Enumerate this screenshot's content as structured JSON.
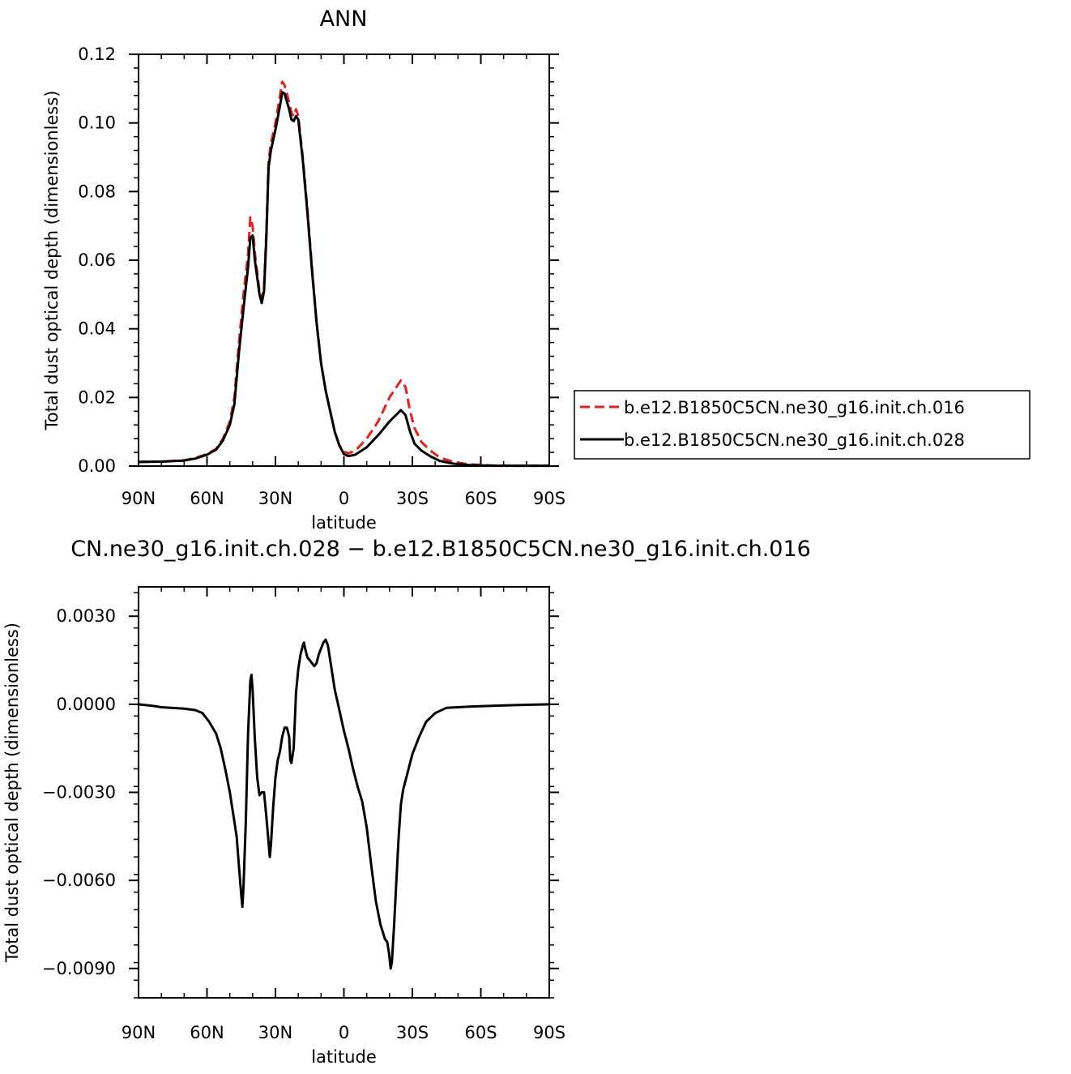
{
  "chart_data": [
    {
      "type": "line",
      "title": "ANN",
      "xlabel": "latitude",
      "ylabel": "Total dust optical depth (dimensionless)",
      "xlim": [
        90,
        -90
      ],
      "ylim": [
        0,
        0.12
      ],
      "x_ticks": [
        {
          "value": 90,
          "label": "90N"
        },
        {
          "value": 60,
          "label": "60N"
        },
        {
          "value": 30,
          "label": "30N"
        },
        {
          "value": 0,
          "label": "0"
        },
        {
          "value": -30,
          "label": "30S"
        },
        {
          "value": -60,
          "label": "60S"
        },
        {
          "value": -90,
          "label": "90S"
        }
      ],
      "y_ticks": [
        {
          "value": 0,
          "label": "0.00"
        },
        {
          "value": 0.02,
          "label": "0.02"
        },
        {
          "value": 0.04,
          "label": "0.04"
        },
        {
          "value": 0.06,
          "label": "0.06"
        },
        {
          "value": 0.08,
          "label": "0.08"
        },
        {
          "value": 0.1,
          "label": "0.10"
        },
        {
          "value": 0.12,
          "label": "0.12"
        }
      ],
      "legend_position": "right",
      "series": [
        {
          "name": "b.e12.B1850C5CN.ne30_g16.init.ch.016",
          "color": "#e8201c",
          "dash": "dashed",
          "points": [
            [
              90,
              0.0012
            ],
            [
              80,
              0.0013
            ],
            [
              70,
              0.0017
            ],
            [
              65,
              0.0024
            ],
            [
              60,
              0.0035
            ],
            [
              56,
              0.005
            ],
            [
              53,
              0.008
            ],
            [
              50,
              0.013
            ],
            [
              48,
              0.02
            ],
            [
              46,
              0.036
            ],
            [
              44,
              0.05
            ],
            [
              42,
              0.062
            ],
            [
              41,
              0.0725
            ],
            [
              40,
              0.07
            ],
            [
              39,
              0.062
            ],
            [
              37,
              0.051
            ],
            [
              36,
              0.049
            ],
            [
              35,
              0.052
            ],
            [
              34,
              0.068
            ],
            [
              33,
              0.089
            ],
            [
              32,
              0.094
            ],
            [
              30,
              0.1
            ],
            [
              28,
              0.108
            ],
            [
              27,
              0.112
            ],
            [
              26,
              0.111
            ],
            [
              24,
              0.106
            ],
            [
              23,
              0.103
            ],
            [
              22,
              0.102
            ],
            [
              21,
              0.104
            ],
            [
              20,
              0.102
            ],
            [
              18,
              0.09
            ],
            [
              16,
              0.075
            ],
            [
              14,
              0.058
            ],
            [
              12,
              0.042
            ],
            [
              10,
              0.03
            ],
            [
              8,
              0.022
            ],
            [
              6,
              0.016
            ],
            [
              4,
              0.01
            ],
            [
              2,
              0.006
            ],
            [
              0,
              0.0042
            ],
            [
              -2,
              0.0037
            ],
            [
              -5,
              0.0045
            ],
            [
              -10,
              0.008
            ],
            [
              -15,
              0.013
            ],
            [
              -20,
              0.02
            ],
            [
              -23,
              0.023
            ],
            [
              -25,
              0.025
            ],
            [
              -27,
              0.023
            ],
            [
              -29,
              0.016
            ],
            [
              -31,
              0.011
            ],
            [
              -34,
              0.007
            ],
            [
              -38,
              0.0045
            ],
            [
              -42,
              0.0025
            ],
            [
              -48,
              0.0012
            ],
            [
              -55,
              0.0005
            ],
            [
              -65,
              0.0002
            ],
            [
              -75,
              0.0001
            ],
            [
              -90,
              0.0001
            ]
          ]
        },
        {
          "name": "b.e12.B1850C5CN.ne30_g16.init.ch.028",
          "color": "#000000",
          "dash": "solid",
          "points": [
            [
              90,
              0.0012
            ],
            [
              80,
              0.0013
            ],
            [
              70,
              0.0016
            ],
            [
              65,
              0.0022
            ],
            [
              60,
              0.0033
            ],
            [
              56,
              0.0048
            ],
            [
              53,
              0.0075
            ],
            [
              50,
              0.012
            ],
            [
              48,
              0.018
            ],
            [
              46,
              0.033
            ],
            [
              44,
              0.046
            ],
            [
              42,
              0.058
            ],
            [
              41,
              0.0665
            ],
            [
              40,
              0.0672
            ],
            [
              39,
              0.06
            ],
            [
              37,
              0.05
            ],
            [
              36,
              0.0475
            ],
            [
              35,
              0.051
            ],
            [
              34,
              0.066
            ],
            [
              33,
              0.087
            ],
            [
              32,
              0.092
            ],
            [
              30,
              0.098
            ],
            [
              28,
              0.105
            ],
            [
              27,
              0.109
            ],
            [
              26,
              0.1085
            ],
            [
              24,
              0.104
            ],
            [
              23,
              0.101
            ],
            [
              22,
              0.1005
            ],
            [
              21,
              0.102
            ],
            [
              20,
              0.101
            ],
            [
              18,
              0.089
            ],
            [
              16,
              0.074
            ],
            [
              14,
              0.057
            ],
            [
              12,
              0.042
            ],
            [
              10,
              0.03
            ],
            [
              8,
              0.022
            ],
            [
              6,
              0.016
            ],
            [
              4,
              0.01
            ],
            [
              2,
              0.006
            ],
            [
              0,
              0.0035
            ],
            [
              -2,
              0.0029
            ],
            [
              -5,
              0.0033
            ],
            [
              -10,
              0.0055
            ],
            [
              -15,
              0.009
            ],
            [
              -20,
              0.013
            ],
            [
              -23,
              0.015
            ],
            [
              -25,
              0.0163
            ],
            [
              -27,
              0.0148
            ],
            [
              -29,
              0.01
            ],
            [
              -31,
              0.0065
            ],
            [
              -34,
              0.0045
            ],
            [
              -38,
              0.0028
            ],
            [
              -42,
              0.0015
            ],
            [
              -48,
              0.0007
            ],
            [
              -55,
              0.0003
            ],
            [
              -65,
              0.0001
            ],
            [
              -75,
              0.0001
            ],
            [
              -90,
              0.0001
            ]
          ]
        }
      ]
    },
    {
      "type": "line",
      "title": "CN.ne30_g16.init.ch.028 − b.e12.B1850C5CN.ne30_g16.init.ch.016",
      "xlabel": "latitude",
      "ylabel": "Total dust optical depth (dimensionless)",
      "xlim": [
        90,
        -90
      ],
      "ylim": [
        -0.01,
        0.004
      ],
      "x_ticks": [
        {
          "value": 90,
          "label": "90N"
        },
        {
          "value": 60,
          "label": "60N"
        },
        {
          "value": 30,
          "label": "30N"
        },
        {
          "value": 0,
          "label": "0"
        },
        {
          "value": -30,
          "label": "30S"
        },
        {
          "value": -60,
          "label": "60S"
        },
        {
          "value": -90,
          "label": "90S"
        }
      ],
      "y_ticks": [
        {
          "value": 0.003,
          "label": "0.0030"
        },
        {
          "value": 0,
          "label": "0.0000"
        },
        {
          "value": -0.003,
          "label": "−0.0030"
        },
        {
          "value": -0.006,
          "label": "−0.0060"
        },
        {
          "value": -0.009,
          "label": "−0.0090"
        }
      ],
      "series": [
        {
          "color": "#000000",
          "dash": "solid",
          "points": [
            [
              90,
              0.0
            ],
            [
              84,
              -5e-05
            ],
            [
              80,
              -0.0001
            ],
            [
              70,
              -0.00015
            ],
            [
              65,
              -0.0002
            ],
            [
              62,
              -0.0003
            ],
            [
              59,
              -0.0006
            ],
            [
              56,
              -0.001
            ],
            [
              54,
              -0.0015
            ],
            [
              52,
              -0.0022
            ],
            [
              50,
              -0.003
            ],
            [
              48,
              -0.004
            ],
            [
              47,
              -0.0045
            ],
            [
              46,
              -0.0055
            ],
            [
              45,
              -0.0065
            ],
            [
              44.5,
              -0.0069
            ],
            [
              44,
              -0.0062
            ],
            [
              43,
              -0.004
            ],
            [
              42,
              -0.001
            ],
            [
              41,
              0.0008
            ],
            [
              40.5,
              0.001
            ],
            [
              40,
              0.0005
            ],
            [
              39,
              -0.0012
            ],
            [
              38,
              -0.0025
            ],
            [
              37,
              -0.0031
            ],
            [
              36,
              -0.003
            ],
            [
              35,
              -0.003
            ],
            [
              34,
              -0.0038
            ],
            [
              33,
              -0.0047
            ],
            [
              32.5,
              -0.0052
            ],
            [
              32,
              -0.0048
            ],
            [
              31,
              -0.0035
            ],
            [
              30,
              -0.0025
            ],
            [
              29,
              -0.0019
            ],
            [
              28,
              -0.0016
            ],
            [
              27,
              -0.0011
            ],
            [
              26,
              -0.0008
            ],
            [
              25,
              -0.0008
            ],
            [
              24,
              -0.0011
            ],
            [
              23.5,
              -0.0019
            ],
            [
              23,
              -0.002
            ],
            [
              22,
              -0.0015
            ],
            [
              21,
              0.0004
            ],
            [
              20,
              0.0012
            ],
            [
              19,
              0.0017
            ],
            [
              18,
              0.002
            ],
            [
              17.5,
              0.0021
            ],
            [
              17,
              0.0019
            ],
            [
              16,
              0.0016
            ],
            [
              15,
              0.0015
            ],
            [
              14,
              0.0014
            ],
            [
              13,
              0.0013
            ],
            [
              12,
              0.0014
            ],
            [
              11,
              0.0017
            ],
            [
              10,
              0.0019
            ],
            [
              9,
              0.0021
            ],
            [
              8,
              0.0022
            ],
            [
              7,
              0.002
            ],
            [
              6,
              0.0015
            ],
            [
              5,
              0.001
            ],
            [
              4,
              0.0005
            ],
            [
              2,
              -0.0002
            ],
            [
              0,
              -0.0009
            ],
            [
              -2,
              -0.0015
            ],
            [
              -4,
              -0.0022
            ],
            [
              -6,
              -0.0028
            ],
            [
              -8,
              -0.0033
            ],
            [
              -10,
              -0.0042
            ],
            [
              -12,
              -0.0055
            ],
            [
              -14,
              -0.0067
            ],
            [
              -16,
              -0.0075
            ],
            [
              -18,
              -0.008
            ],
            [
              -19,
              -0.0081
            ],
            [
              -19.8,
              -0.0085
            ],
            [
              -20.5,
              -0.009
            ],
            [
              -21,
              -0.0088
            ],
            [
              -22,
              -0.0075
            ],
            [
              -23,
              -0.006
            ],
            [
              -24,
              -0.0045
            ],
            [
              -25,
              -0.0034
            ],
            [
              -26,
              -0.0029
            ],
            [
              -28,
              -0.0023
            ],
            [
              -30,
              -0.0017
            ],
            [
              -33,
              -0.0011
            ],
            [
              -36,
              -0.0006
            ],
            [
              -40,
              -0.0003
            ],
            [
              -45,
              -0.00012
            ],
            [
              -55,
              -8e-05
            ],
            [
              -65,
              -5e-05
            ],
            [
              -75,
              -3e-05
            ],
            [
              -90,
              0.0
            ]
          ]
        }
      ]
    }
  ]
}
